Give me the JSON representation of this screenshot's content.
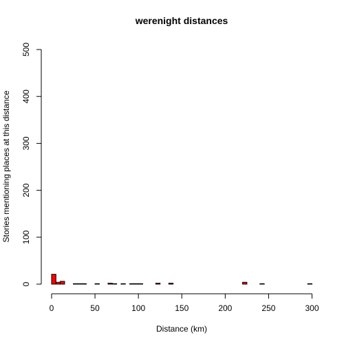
{
  "chart_data": {
    "type": "bar",
    "title": "werenight distances",
    "xlabel": "Distance (km)",
    "ylabel": "Stories mentioning places at this distance",
    "xlim": [
      0,
      310
    ],
    "ylim": [
      0,
      500
    ],
    "xticks": [
      0,
      50,
      100,
      150,
      200,
      250,
      300
    ],
    "yticks": [
      0,
      100,
      200,
      300,
      400,
      500
    ],
    "bin_width": 5,
    "bar_color": "#ff0000",
    "edge_color": "#000000",
    "bins": [
      {
        "x0": 0,
        "value": 21
      },
      {
        "x0": 5,
        "value": 4
      },
      {
        "x0": 10,
        "value": 6
      },
      {
        "x0": 15,
        "value": 0
      },
      {
        "x0": 20,
        "value": 0
      },
      {
        "x0": 25,
        "value": 1
      },
      {
        "x0": 30,
        "value": 1
      },
      {
        "x0": 35,
        "value": 1
      },
      {
        "x0": 40,
        "value": 0
      },
      {
        "x0": 45,
        "value": 0
      },
      {
        "x0": 50,
        "value": 1
      },
      {
        "x0": 55,
        "value": 0
      },
      {
        "x0": 60,
        "value": 0
      },
      {
        "x0": 65,
        "value": 2
      },
      {
        "x0": 70,
        "value": 1
      },
      {
        "x0": 75,
        "value": 0
      },
      {
        "x0": 80,
        "value": 1
      },
      {
        "x0": 85,
        "value": 0
      },
      {
        "x0": 90,
        "value": 1
      },
      {
        "x0": 95,
        "value": 1
      },
      {
        "x0": 100,
        "value": 1
      },
      {
        "x0": 105,
        "value": 0
      },
      {
        "x0": 110,
        "value": 0
      },
      {
        "x0": 115,
        "value": 0
      },
      {
        "x0": 120,
        "value": 2
      },
      {
        "x0": 125,
        "value": 0
      },
      {
        "x0": 130,
        "value": 0
      },
      {
        "x0": 135,
        "value": 2
      },
      {
        "x0": 140,
        "value": 0
      },
      {
        "x0": 145,
        "value": 0
      },
      {
        "x0": 150,
        "value": 0
      },
      {
        "x0": 155,
        "value": 0
      },
      {
        "x0": 160,
        "value": 0
      },
      {
        "x0": 165,
        "value": 0
      },
      {
        "x0": 170,
        "value": 0
      },
      {
        "x0": 175,
        "value": 0
      },
      {
        "x0": 180,
        "value": 0
      },
      {
        "x0": 185,
        "value": 0
      },
      {
        "x0": 190,
        "value": 0
      },
      {
        "x0": 195,
        "value": 0
      },
      {
        "x0": 200,
        "value": 0
      },
      {
        "x0": 205,
        "value": 0
      },
      {
        "x0": 210,
        "value": 0
      },
      {
        "x0": 215,
        "value": 0
      },
      {
        "x0": 220,
        "value": 4
      },
      {
        "x0": 225,
        "value": 0
      },
      {
        "x0": 230,
        "value": 0
      },
      {
        "x0": 235,
        "value": 0
      },
      {
        "x0": 240,
        "value": 1
      },
      {
        "x0": 245,
        "value": 0
      },
      {
        "x0": 250,
        "value": 0
      },
      {
        "x0": 255,
        "value": 0
      },
      {
        "x0": 260,
        "value": 0
      },
      {
        "x0": 265,
        "value": 0
      },
      {
        "x0": 270,
        "value": 0
      },
      {
        "x0": 275,
        "value": 0
      },
      {
        "x0": 280,
        "value": 0
      },
      {
        "x0": 285,
        "value": 0
      },
      {
        "x0": 290,
        "value": 0
      },
      {
        "x0": 295,
        "value": 1
      },
      {
        "x0": 300,
        "value": 0
      },
      {
        "x0": 305,
        "value": 0
      }
    ]
  }
}
